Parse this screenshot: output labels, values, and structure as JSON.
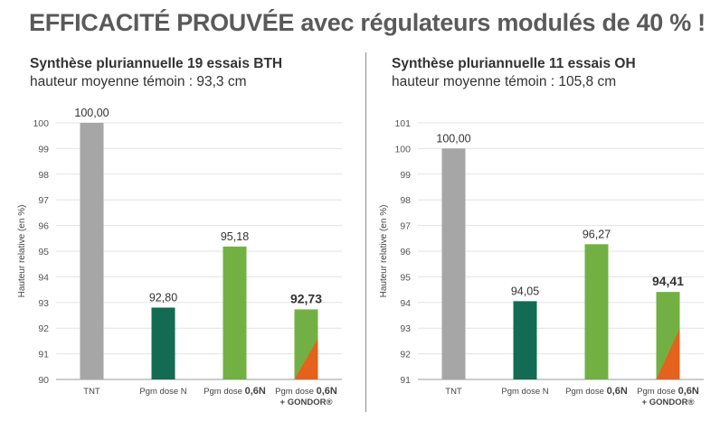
{
  "headline": "EFFICACITÉ PROUVÉE avec régulateurs modulés de 40 % !",
  "colors": {
    "tnt": "#a6a6a6",
    "dark_green": "#126b52",
    "light_green": "#72b044",
    "orange": "#e4611e",
    "grid": "#e3e3e3",
    "axis": "#9a9a9a"
  },
  "chart_data": [
    {
      "type": "bar",
      "title": "Synthèse pluriannuelle 19 essais BTH",
      "subtitle": "hauteur moyenne témoin : 93,3 cm",
      "ylabel": "Hauteur relative (en %)",
      "ylim": [
        90,
        100
      ],
      "yticks": [
        "90",
        "91",
        "92",
        "93",
        "94",
        "95",
        "96",
        "97",
        "98",
        "99",
        "100"
      ],
      "grid": true,
      "categories": [
        {
          "pre": "TNT",
          "bold": "",
          "line2": ""
        },
        {
          "pre": "Pgm dose N",
          "bold": "",
          "line2": ""
        },
        {
          "pre": "Pgm dose ",
          "bold": "0,6N",
          "line2": ""
        },
        {
          "pre": "Pgm dose ",
          "bold": "0,6N",
          "line2": "+ GONDOR®"
        }
      ],
      "values": [
        100.0,
        92.8,
        95.18,
        92.73
      ],
      "value_labels": [
        "100,00",
        "92,80",
        "95,18",
        "92,73"
      ],
      "highlight_label": [
        false,
        false,
        false,
        true
      ],
      "bar_colors": [
        "tnt",
        "dark_green",
        "light_green",
        "light_green"
      ],
      "orange_overlay": [
        false,
        false,
        false,
        true
      ]
    },
    {
      "type": "bar",
      "title": "Synthèse pluriannuelle 11 essais OH",
      "subtitle": "hauteur moyenne témoin : 105,8 cm",
      "ylabel": "Hauteur relative (en %)",
      "ylim": [
        91,
        101
      ],
      "yticks": [
        "91",
        "92",
        "93",
        "94",
        "95",
        "96",
        "97",
        "98",
        "99",
        "100",
        "101"
      ],
      "grid": true,
      "categories": [
        {
          "pre": "TNT",
          "bold": "",
          "line2": ""
        },
        {
          "pre": "Pgm dose N",
          "bold": "",
          "line2": ""
        },
        {
          "pre": "Pgm dose ",
          "bold": "0,6N",
          "line2": ""
        },
        {
          "pre": "Pgm dose ",
          "bold": "0,6N",
          "line2": "+ GONDOR®"
        }
      ],
      "values": [
        100.0,
        94.05,
        96.27,
        94.41
      ],
      "value_labels": [
        "100,00",
        "94,05",
        "96,27",
        "94,41"
      ],
      "highlight_label": [
        false,
        false,
        false,
        true
      ],
      "bar_colors": [
        "tnt",
        "dark_green",
        "light_green",
        "light_green"
      ],
      "orange_overlay": [
        false,
        false,
        false,
        true
      ]
    }
  ]
}
